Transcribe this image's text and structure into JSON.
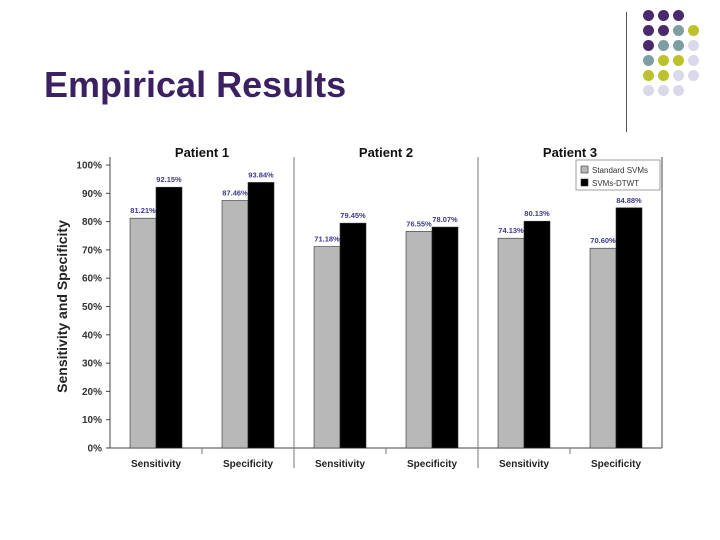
{
  "slide": {
    "title": "Empirical Results"
  },
  "decor": {
    "dot_colors": {
      "purple": "#4b2a6b",
      "teal": "#7f9ea4",
      "olive": "#bcc12c",
      "lavender": "#d9d9ea"
    },
    "dot_rows": [
      [
        "purple",
        "purple",
        "purple"
      ],
      [
        "purple",
        "purple",
        "teal",
        "olive"
      ],
      [
        "purple",
        "teal",
        "teal",
        "lavender"
      ],
      [
        "teal",
        "olive",
        "olive",
        "lavender"
      ],
      [
        "olive",
        "olive",
        "lavender",
        "lavender"
      ],
      [
        "lavender",
        "lavender",
        "lavender"
      ]
    ]
  },
  "chart_data": {
    "type": "bar",
    "ylabel": "Sensitivity and Specificity",
    "ylim": [
      0,
      100
    ],
    "yticks": [
      "0%",
      "10%",
      "20%",
      "30%",
      "40%",
      "50%",
      "60%",
      "70%",
      "80%",
      "90%",
      "100%"
    ],
    "groups": [
      {
        "title": "Patient 1",
        "categories": [
          "Sensitivity",
          "Specificity"
        ]
      },
      {
        "title": "Patient 2",
        "categories": [
          "Sensitivity",
          "Specificity"
        ]
      },
      {
        "title": "Patient 3",
        "categories": [
          "Sensitivity",
          "Specificity"
        ]
      }
    ],
    "categories": [
      "Sensitivity",
      "Specificity",
      "Sensitivity",
      "Specificity",
      "Sensitivity",
      "Specificity"
    ],
    "series": [
      {
        "name": "Standard SVMs",
        "color": "#b8b8b8",
        "values": [
          81.21,
          87.46,
          71.18,
          76.55,
          74.13,
          70.6
        ],
        "labels": [
          "81.21%",
          "87.46%",
          "71.18%",
          "76.55%",
          "74.13%",
          "70.60%"
        ]
      },
      {
        "name": "SVMs-DTWT",
        "color": "#000000",
        "values": [
          92.15,
          93.84,
          79.45,
          78.07,
          80.13,
          84.88
        ],
        "labels": [
          "92.15%",
          "93.84%",
          "79.45%",
          "78.07%",
          "80.13%",
          "84.88%"
        ]
      }
    ],
    "legend_position": "top-right",
    "label_color": "#3c3a8c",
    "grid": false
  }
}
